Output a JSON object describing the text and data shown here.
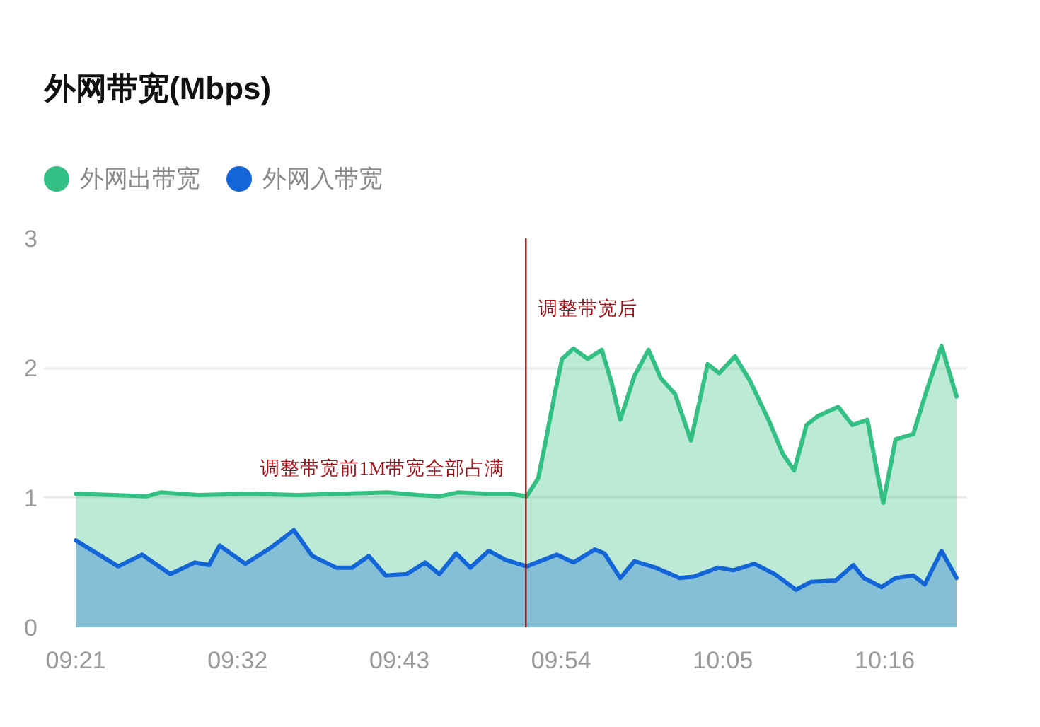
{
  "chart_data": {
    "type": "area",
    "title": "外网带宽(Mbps)",
    "xlim": [
      9.313,
      10.36
    ],
    "xticks": [
      {
        "value": 9.35,
        "label": "09:21"
      },
      {
        "value": 9.5333,
        "label": "09:32"
      },
      {
        "value": 9.7167,
        "label": "09:43"
      },
      {
        "value": 9.9,
        "label": "09:54"
      },
      {
        "value": 10.0833,
        "label": "10:05"
      },
      {
        "value": 10.2667,
        "label": "10:16"
      }
    ],
    "ylim": [
      0,
      3
    ],
    "yticks": [
      0,
      1,
      2,
      3
    ],
    "grid": "y",
    "legend": "top left",
    "series": [
      {
        "name": "外网出带宽",
        "color": "#34c084",
        "x": [
          9.35,
          9.393,
          9.43,
          9.446,
          9.489,
          9.546,
          9.602,
          9.65,
          9.703,
          9.738,
          9.762,
          9.783,
          9.818,
          9.842,
          9.861,
          9.874,
          9.882,
          9.893,
          9.901,
          9.914,
          9.93,
          9.946,
          9.957,
          9.967,
          9.983,
          9.999,
          10.013,
          10.029,
          10.047,
          10.066,
          10.079,
          10.097,
          10.114,
          10.135,
          10.151,
          10.164,
          10.178,
          10.191,
          10.214,
          10.23,
          10.247,
          10.259,
          10.265,
          10.279,
          10.299,
          10.312,
          10.331,
          10.348
        ],
        "values": [
          1.03,
          1.02,
          1.01,
          1.04,
          1.02,
          1.03,
          1.02,
          1.03,
          1.04,
          1.02,
          1.01,
          1.04,
          1.03,
          1.03,
          1.01,
          1.15,
          1.42,
          1.81,
          2.07,
          2.15,
          2.07,
          2.14,
          1.89,
          1.6,
          1.94,
          2.14,
          1.92,
          1.8,
          1.44,
          2.03,
          1.96,
          2.09,
          1.9,
          1.6,
          1.34,
          1.21,
          1.56,
          1.63,
          1.7,
          1.56,
          1.6,
          1.16,
          0.96,
          1.45,
          1.49,
          1.78,
          2.17,
          1.78
        ]
      },
      {
        "name": "外网入带宽",
        "color": "#1466d8",
        "x": [
          9.35,
          9.398,
          9.425,
          9.457,
          9.485,
          9.501,
          9.513,
          9.542,
          9.57,
          9.582,
          9.597,
          9.618,
          9.645,
          9.663,
          9.682,
          9.701,
          9.725,
          9.746,
          9.762,
          9.781,
          9.797,
          9.818,
          9.837,
          9.861,
          9.895,
          9.914,
          9.938,
          9.949,
          9.967,
          9.983,
          10.007,
          10.034,
          10.05,
          10.078,
          10.095,
          10.119,
          10.142,
          10.166,
          10.183,
          10.211,
          10.231,
          10.243,
          10.263,
          10.279,
          10.299,
          10.312,
          10.331,
          10.348
        ],
        "values": [
          0.67,
          0.47,
          0.56,
          0.41,
          0.5,
          0.48,
          0.63,
          0.49,
          0.61,
          0.67,
          0.75,
          0.55,
          0.46,
          0.46,
          0.55,
          0.4,
          0.41,
          0.5,
          0.41,
          0.57,
          0.46,
          0.59,
          0.52,
          0.47,
          0.56,
          0.5,
          0.6,
          0.57,
          0.38,
          0.51,
          0.46,
          0.38,
          0.39,
          0.46,
          0.44,
          0.49,
          0.41,
          0.29,
          0.35,
          0.36,
          0.48,
          0.38,
          0.31,
          0.38,
          0.4,
          0.33,
          0.59,
          0.38
        ]
      }
    ],
    "ref_lines": [
      {
        "axis": "x",
        "value": 9.86,
        "color": "#8b1a1a"
      }
    ],
    "annotations": [
      "调整带宽前1M带宽全部占满",
      "调整带宽后"
    ]
  }
}
